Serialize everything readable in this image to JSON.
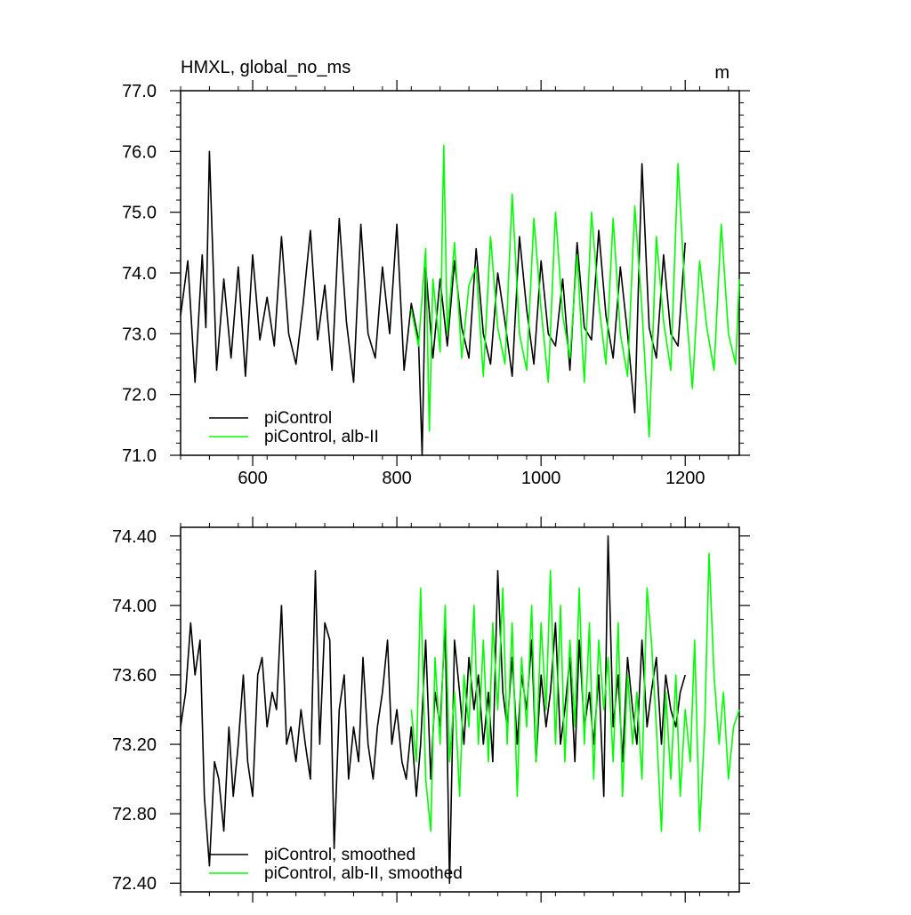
{
  "chart_data": [
    {
      "type": "line",
      "title": "HMXL, global_no_ms",
      "units": "m",
      "xlabel": "",
      "ylabel": "",
      "xlim": [
        500,
        1275
      ],
      "ylim": [
        71.0,
        77.0
      ],
      "xticks": [
        600,
        800,
        1000,
        1200
      ],
      "xtick_labels": [
        "600",
        "800",
        "1000",
        "1200"
      ],
      "yticks": [
        71.0,
        72.0,
        73.0,
        74.0,
        75.0,
        76.0,
        77.0
      ],
      "ytick_labels": [
        "71.0",
        "72.0",
        "73.0",
        "74.0",
        "75.0",
        "76.0",
        "77.0"
      ],
      "grid": false,
      "legend_position": "bottom-left",
      "series": [
        {
          "name": "piControl",
          "color": "#000000",
          "x": [
            500,
            510,
            520,
            530,
            535,
            540,
            550,
            560,
            570,
            580,
            590,
            600,
            610,
            620,
            630,
            640,
            650,
            660,
            670,
            680,
            690,
            700,
            710,
            720,
            730,
            740,
            750,
            760,
            770,
            780,
            790,
            800,
            810,
            820,
            830,
            835,
            840,
            850,
            860,
            870,
            880,
            890,
            900,
            910,
            920,
            930,
            940,
            950,
            960,
            970,
            980,
            990,
            1000,
            1010,
            1020,
            1030,
            1040,
            1050,
            1060,
            1070,
            1080,
            1090,
            1100,
            1110,
            1120,
            1130,
            1140,
            1150,
            1160,
            1170,
            1180,
            1190,
            1200
          ],
          "values": [
            73.3,
            74.2,
            72.2,
            74.3,
            73.1,
            76.0,
            72.4,
            73.9,
            72.6,
            74.1,
            72.3,
            74.3,
            72.9,
            73.6,
            72.8,
            74.6,
            73.0,
            72.5,
            73.5,
            74.7,
            72.9,
            73.8,
            72.4,
            74.9,
            73.2,
            72.2,
            74.8,
            73.0,
            72.6,
            74.1,
            73.0,
            74.8,
            72.4,
            73.5,
            72.9,
            71.0,
            74.1,
            72.6,
            73.9,
            72.8,
            74.2,
            73.1,
            72.6,
            74.4,
            73.0,
            72.5,
            74.0,
            73.2,
            72.3,
            74.6,
            73.4,
            72.5,
            74.2,
            73.0,
            72.8,
            73.9,
            72.4,
            74.5,
            73.1,
            72.9,
            74.7,
            73.3,
            72.6,
            74.1,
            73.0,
            71.7,
            75.8,
            73.1,
            72.6,
            74.3,
            73.0,
            72.8,
            74.5
          ]
        },
        {
          "name": "piControl, alb-II",
          "color": "#00ff00",
          "x": [
            820,
            830,
            840,
            845,
            850,
            860,
            865,
            870,
            880,
            890,
            900,
            910,
            920,
            930,
            940,
            950,
            960,
            970,
            980,
            990,
            1000,
            1010,
            1020,
            1030,
            1040,
            1050,
            1060,
            1070,
            1080,
            1090,
            1100,
            1110,
            1120,
            1130,
            1140,
            1150,
            1160,
            1170,
            1180,
            1190,
            1200,
            1210,
            1220,
            1230,
            1240,
            1250,
            1260,
            1270,
            1275
          ],
          "values": [
            73.4,
            72.8,
            74.4,
            71.4,
            73.9,
            72.7,
            76.1,
            73.0,
            74.5,
            72.6,
            73.8,
            74.1,
            72.3,
            74.6,
            73.1,
            72.5,
            75.3,
            73.0,
            72.4,
            74.9,
            73.4,
            72.2,
            75.0,
            73.3,
            72.6,
            74.3,
            72.2,
            75.0,
            73.5,
            72.5,
            74.9,
            73.0,
            72.3,
            75.1,
            73.4,
            71.3,
            74.6,
            73.2,
            72.4,
            75.8,
            73.6,
            72.1,
            74.2,
            73.1,
            72.4,
            74.8,
            73.0,
            72.5,
            73.9
          ]
        }
      ],
      "legend": [
        "piControl",
        "piControl, alb-II"
      ]
    },
    {
      "type": "line",
      "title": "",
      "xlabel": "",
      "ylabel": "",
      "xlim": [
        500,
        1275
      ],
      "ylim": [
        72.35,
        74.45
      ],
      "xticks": [
        600,
        800,
        1000,
        1200
      ],
      "yticks": [
        72.4,
        72.8,
        73.2,
        73.6,
        74.0,
        74.4
      ],
      "ytick_labels": [
        "72.40",
        "72.80",
        "73.20",
        "73.60",
        "74.00",
        "74.40"
      ],
      "grid": false,
      "legend_position": "bottom-left",
      "series": [
        {
          "name": "piControl, smoothed",
          "color": "#000000",
          "x": [
            500,
            507,
            514,
            520,
            527,
            533,
            540,
            547,
            553,
            560,
            567,
            573,
            580,
            587,
            593,
            600,
            607,
            613,
            620,
            627,
            633,
            640,
            647,
            653,
            660,
            667,
            673,
            680,
            687,
            693,
            700,
            707,
            713,
            720,
            727,
            733,
            740,
            747,
            753,
            760,
            767,
            773,
            780,
            787,
            793,
            800,
            807,
            813,
            820,
            827,
            833,
            840,
            847,
            853,
            860,
            867,
            873,
            880,
            887,
            893,
            900,
            907,
            913,
            920,
            927,
            933,
            940,
            947,
            953,
            960,
            967,
            973,
            980,
            987,
            993,
            1000,
            1007,
            1013,
            1020,
            1027,
            1033,
            1040,
            1047,
            1053,
            1060,
            1067,
            1073,
            1080,
            1087,
            1093,
            1100,
            1107,
            1113,
            1120,
            1127,
            1133,
            1140,
            1147,
            1153,
            1160,
            1167,
            1173,
            1180,
            1187,
            1193,
            1200
          ],
          "values": [
            73.3,
            73.5,
            73.9,
            73.6,
            73.8,
            72.9,
            72.5,
            73.1,
            73.0,
            72.7,
            73.3,
            72.9,
            73.2,
            73.6,
            73.1,
            72.9,
            73.6,
            73.7,
            73.3,
            73.5,
            73.4,
            74.0,
            73.2,
            73.3,
            73.1,
            73.4,
            73.2,
            73.0,
            74.2,
            73.2,
            73.9,
            73.8,
            72.6,
            73.4,
            73.6,
            73.0,
            73.3,
            73.1,
            73.7,
            73.2,
            73.0,
            73.3,
            73.5,
            73.8,
            73.2,
            73.4,
            73.1,
            73.0,
            73.3,
            72.9,
            73.2,
            73.8,
            73.0,
            73.5,
            73.3,
            73.9,
            72.4,
            73.8,
            73.5,
            73.2,
            73.7,
            73.4,
            73.6,
            73.2,
            73.5,
            73.1,
            74.2,
            73.5,
            73.3,
            73.7,
            73.2,
            73.6,
            73.4,
            73.8,
            73.1,
            73.6,
            73.3,
            73.5,
            73.9,
            73.2,
            73.4,
            73.7,
            73.1,
            73.8,
            73.3,
            73.5,
            73.2,
            73.6,
            72.9,
            74.4,
            73.3,
            73.6,
            73.1,
            73.7,
            73.4,
            73.2,
            73.8,
            73.3,
            73.5,
            73.7,
            73.2,
            73.6,
            73.4,
            73.3,
            73.5,
            73.6
          ]
        },
        {
          "name": "piControl, alb-II, smoothed",
          "color": "#00ff00",
          "x": [
            820,
            827,
            833,
            840,
            847,
            853,
            860,
            867,
            873,
            880,
            887,
            893,
            900,
            907,
            913,
            920,
            927,
            933,
            940,
            947,
            953,
            960,
            967,
            973,
            980,
            987,
            993,
            1000,
            1007,
            1013,
            1020,
            1027,
            1033,
            1040,
            1047,
            1053,
            1060,
            1067,
            1073,
            1080,
            1087,
            1093,
            1100,
            1107,
            1113,
            1120,
            1127,
            1133,
            1140,
            1147,
            1153,
            1160,
            1167,
            1173,
            1180,
            1187,
            1193,
            1200,
            1207,
            1213,
            1220,
            1227,
            1233,
            1240,
            1247,
            1253,
            1260,
            1267,
            1275
          ],
          "values": [
            73.4,
            73.1,
            74.1,
            73.0,
            72.7,
            73.7,
            73.2,
            74.0,
            73.1,
            73.5,
            72.9,
            73.6,
            73.3,
            74.0,
            73.2,
            73.8,
            73.1,
            73.9,
            73.4,
            74.1,
            73.2,
            73.9,
            72.9,
            73.7,
            73.3,
            74.0,
            73.1,
            73.9,
            73.4,
            74.2,
            73.2,
            74.0,
            73.1,
            73.8,
            73.3,
            74.1,
            73.2,
            73.9,
            73.0,
            73.8,
            73.4,
            73.7,
            73.1,
            73.9,
            72.9,
            73.6,
            73.2,
            73.5,
            73.0,
            74.1,
            73.8,
            73.3,
            72.7,
            73.5,
            73.0,
            73.6,
            72.9,
            73.4,
            73.1,
            73.8,
            72.7,
            73.3,
            74.3,
            73.6,
            73.2,
            73.5,
            73.0,
            73.3,
            73.4
          ]
        }
      ],
      "legend": [
        "piControl, smoothed",
        "piControl, alb-II, smoothed"
      ]
    }
  ]
}
